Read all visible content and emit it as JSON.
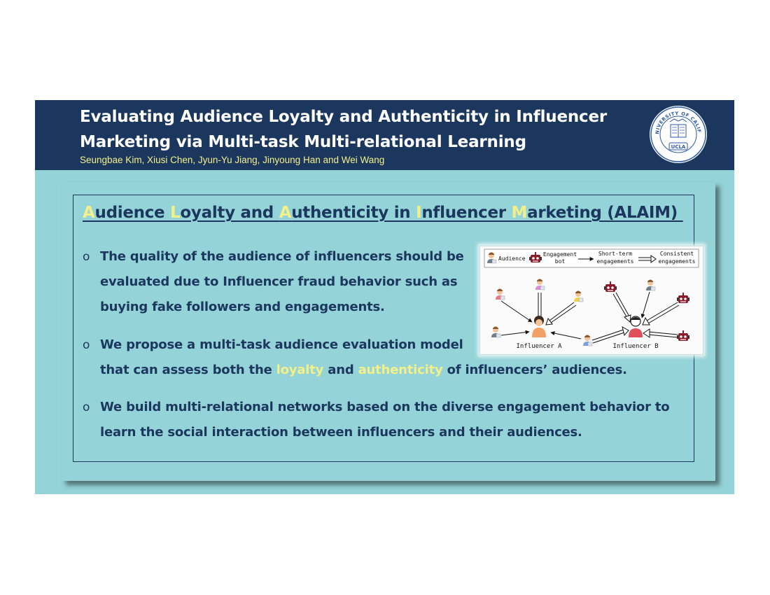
{
  "header": {
    "title_line1": "Evaluating Audience Loyalty and Authenticity in Influencer",
    "title_line2": "Marketing via Multi-task Multi-relational Learning",
    "authors": "Seungbae Kim, Xiusi Chen, Jyun-Yu Jiang, Jinyoung Han and Wei Wang",
    "seal_text_top": "THE UNIVERSITY OF CALIFORNIA",
    "seal_text_bottom": "UCLA"
  },
  "section": {
    "title_parts": [
      {
        "text": "A",
        "highlight": true
      },
      {
        "text": "udience ",
        "highlight": false
      },
      {
        "text": "L",
        "highlight": true
      },
      {
        "text": "oyalty and ",
        "highlight": false
      },
      {
        "text": "A",
        "highlight": true
      },
      {
        "text": "uthenticity in ",
        "highlight": false
      },
      {
        "text": "I",
        "highlight": true
      },
      {
        "text": "nfluencer ",
        "highlight": false
      },
      {
        "text": "M",
        "highlight": true
      },
      {
        "text": "arketing (ALAIM) ",
        "highlight": false
      }
    ]
  },
  "bullets": [
    {
      "marker": "o",
      "lines": [
        [
          {
            "text": "The quality of the audience of influencers should be",
            "highlight": false
          }
        ],
        [
          {
            "text": "evaluated due to Influencer fraud behavior such as",
            "highlight": false
          }
        ],
        [
          {
            "text": "buying fake followers and engagements.",
            "highlight": false
          }
        ]
      ]
    },
    {
      "marker": "o",
      "lines": [
        [
          {
            "text": "We propose a multi-task audience evaluation model",
            "highlight": false
          }
        ],
        [
          {
            "text": "that can assess both the ",
            "highlight": false
          },
          {
            "text": "loyalty",
            "highlight": true
          },
          {
            "text": " and ",
            "highlight": false
          },
          {
            "text": "authenticity",
            "highlight": true
          },
          {
            "text": " of influencers’ audiences.",
            "highlight": false
          }
        ]
      ]
    },
    {
      "marker": "o",
      "lines": [
        [
          {
            "text": "We build multi-relational networks based on the diverse engagement behavior to",
            "highlight": false
          }
        ],
        [
          {
            "text": "learn the social interaction between influencers and their audiences.",
            "highlight": false
          }
        ]
      ]
    }
  ],
  "figure": {
    "legend": {
      "audience": "Audience",
      "bot_line1": "Engagement",
      "bot_line2": "bot",
      "short_line1": "Short-term",
      "short_line2": "engagements",
      "consistent_line1": "Consistent",
      "consistent_line2": "engagements"
    },
    "influencer_a": "Influencer A",
    "influencer_b": "Influencer B"
  },
  "colors": {
    "header_bg": "#1c375e",
    "slide_bg": "#94d3d7",
    "highlight": "#f3f08a",
    "text_dark": "#1c375e"
  }
}
